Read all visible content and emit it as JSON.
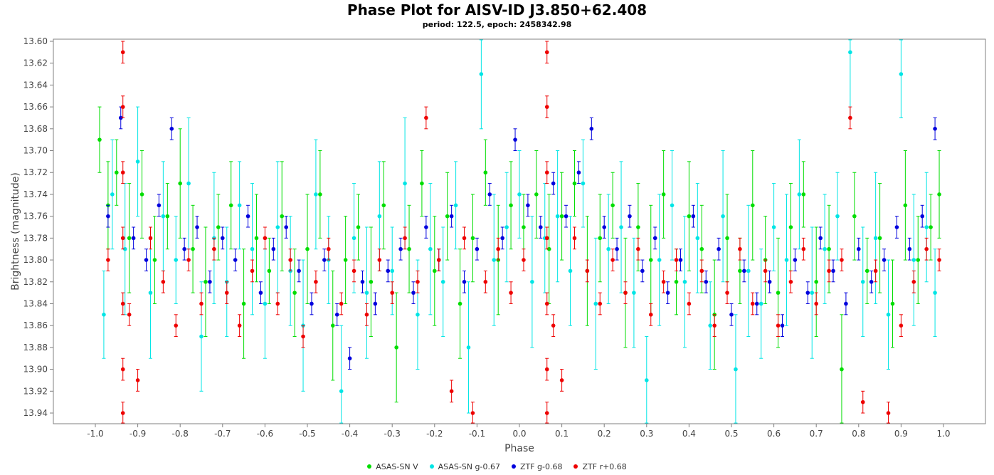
{
  "chart_data": {
    "type": "scatter",
    "title": "Phase Plot for AISV-ID J3.850+62.408",
    "subtitle": "period: 122.5, epoch: 2458342.98",
    "xlabel": "Phase",
    "ylabel": "Brightness (magnitude)",
    "xlim": [
      -1.0,
      1.0
    ],
    "ylim": [
      13.6,
      13.95
    ],
    "y_inverted": false,
    "x_ticks": [
      "-1.0",
      "-0.9",
      "-0.8",
      "-0.7",
      "-0.6",
      "-0.5",
      "-0.4",
      "-0.3",
      "-0.2",
      "-0.1",
      "0.0",
      "0.1",
      "0.2",
      "0.3",
      "0.4",
      "0.5",
      "0.6",
      "0.7",
      "0.8",
      "0.9",
      "1.0"
    ],
    "y_ticks": [
      "13.60",
      "13.62",
      "13.64",
      "13.66",
      "13.68",
      "13.70",
      "13.72",
      "13.74",
      "13.76",
      "13.78",
      "13.80",
      "13.82",
      "13.84",
      "13.86",
      "13.88",
      "13.90",
      "13.92",
      "13.94"
    ],
    "grid": false,
    "legend_position": "bottom",
    "series": [
      {
        "name": "ASAS-SN V",
        "color": "#00dd00",
        "x": [
          -0.99,
          -0.97,
          -0.95,
          -0.92,
          -0.89,
          -0.86,
          -0.83,
          -0.8,
          -0.77,
          -0.74,
          -0.71,
          -0.68,
          -0.65,
          -0.62,
          -0.59,
          -0.56,
          -0.53,
          -0.5,
          -0.47,
          -0.44,
          -0.41,
          -0.38,
          -0.35,
          -0.32,
          -0.29,
          -0.26,
          -0.23,
          -0.2,
          -0.17,
          -0.14,
          -0.11,
          -0.08,
          -0.05,
          -0.02,
          0.01,
          0.04,
          0.07,
          0.1,
          0.13,
          0.16,
          0.19,
          0.22,
          0.25,
          0.28,
          0.31,
          0.34,
          0.37,
          0.4,
          0.43,
          0.46,
          0.49,
          0.52,
          0.55,
          0.58,
          0.61,
          0.64,
          0.67,
          0.7,
          0.73,
          0.76,
          0.79,
          0.82,
          0.85,
          0.88,
          0.91,
          0.94,
          0.97,
          0.99
        ],
        "y": [
          13.69,
          13.75,
          13.72,
          13.78,
          13.74,
          13.8,
          13.76,
          13.73,
          13.79,
          13.82,
          13.77,
          13.75,
          13.84,
          13.78,
          13.81,
          13.76,
          13.83,
          13.79,
          13.74,
          13.86,
          13.8,
          13.77,
          13.82,
          13.75,
          13.88,
          13.79,
          13.73,
          13.81,
          13.76,
          13.84,
          13.78,
          13.72,
          13.8,
          13.75,
          13.77,
          13.74,
          13.79,
          13.76,
          13.73,
          13.81,
          13.78,
          13.75,
          13.83,
          13.77,
          13.8,
          13.74,
          13.82,
          13.76,
          13.79,
          13.85,
          13.78,
          13.81,
          13.75,
          13.8,
          13.83,
          13.77,
          13.74,
          13.82,
          13.79,
          13.9,
          13.76,
          13.81,
          13.78,
          13.84,
          13.75,
          13.8,
          13.77,
          13.74
        ],
        "err": [
          0.03,
          0.04,
          0.03,
          0.05,
          0.04,
          0.04,
          0.03,
          0.05,
          0.04,
          0.05,
          0.03,
          0.04,
          0.05,
          0.04,
          0.03,
          0.05,
          0.04,
          0.05,
          0.04,
          0.05,
          0.04,
          0.03,
          0.05,
          0.04,
          0.05,
          0.04,
          0.03,
          0.05,
          0.04,
          0.05,
          0.04,
          0.03,
          0.05,
          0.04,
          0.03,
          0.04,
          0.05,
          0.04,
          0.03,
          0.05,
          0.04,
          0.03,
          0.05,
          0.04,
          0.05,
          0.04,
          0.03,
          0.05,
          0.04,
          0.05,
          0.04,
          0.03,
          0.05,
          0.04,
          0.05,
          0.04,
          0.03,
          0.05,
          0.04,
          0.05,
          0.04,
          0.03,
          0.05,
          0.04,
          0.05,
          0.04,
          0.03,
          0.04
        ]
      },
      {
        "name": "ASAS-SN g-0.67",
        "color": "#00e5e5",
        "x": [
          -0.98,
          -0.96,
          -0.93,
          -0.9,
          -0.87,
          -0.84,
          -0.81,
          -0.78,
          -0.75,
          -0.72,
          -0.69,
          -0.66,
          -0.63,
          -0.6,
          -0.57,
          -0.54,
          -0.51,
          -0.48,
          -0.45,
          -0.42,
          -0.39,
          -0.36,
          -0.33,
          -0.3,
          -0.27,
          -0.24,
          -0.21,
          -0.18,
          -0.15,
          -0.12,
          -0.09,
          -0.06,
          -0.03,
          0.0,
          0.03,
          0.06,
          0.09,
          0.12,
          0.15,
          0.18,
          0.21,
          0.24,
          0.27,
          0.3,
          0.33,
          0.36,
          0.39,
          0.42,
          0.45,
          0.48,
          0.51,
          0.54,
          0.57,
          0.6,
          0.63,
          0.66,
          0.69,
          0.72,
          0.75,
          0.78,
          0.81,
          0.84,
          0.87,
          0.9,
          0.93,
          0.96,
          0.98
        ],
        "y": [
          13.85,
          13.74,
          13.79,
          13.71,
          13.83,
          13.76,
          13.8,
          13.73,
          13.87,
          13.78,
          13.82,
          13.75,
          13.79,
          13.84,
          13.77,
          13.81,
          13.86,
          13.74,
          13.8,
          13.92,
          13.78,
          13.83,
          13.76,
          13.81,
          13.73,
          13.85,
          13.79,
          13.82,
          13.75,
          13.88,
          13.63,
          13.8,
          13.77,
          13.74,
          13.82,
          13.78,
          13.76,
          13.81,
          13.73,
          13.84,
          13.79,
          13.77,
          13.83,
          13.91,
          13.8,
          13.75,
          13.82,
          13.78,
          13.86,
          13.76,
          13.9,
          13.81,
          13.84,
          13.77,
          13.8,
          13.74,
          13.83,
          13.79,
          13.76,
          13.61,
          13.82,
          13.78,
          13.85,
          13.63,
          13.8,
          13.77,
          13.83
        ],
        "err": [
          0.04,
          0.05,
          0.06,
          0.05,
          0.06,
          0.05,
          0.04,
          0.06,
          0.05,
          0.06,
          0.05,
          0.04,
          0.06,
          0.05,
          0.06,
          0.05,
          0.06,
          0.05,
          0.04,
          0.06,
          0.05,
          0.06,
          0.05,
          0.04,
          0.06,
          0.05,
          0.06,
          0.05,
          0.04,
          0.06,
          0.05,
          0.06,
          0.05,
          0.04,
          0.06,
          0.05,
          0.06,
          0.05,
          0.04,
          0.06,
          0.05,
          0.06,
          0.05,
          0.04,
          0.06,
          0.05,
          0.06,
          0.05,
          0.04,
          0.06,
          0.05,
          0.06,
          0.05,
          0.04,
          0.06,
          0.05,
          0.06,
          0.05,
          0.04,
          0.06,
          0.05,
          0.06,
          0.05,
          0.04,
          0.06,
          0.05,
          0.04
        ]
      },
      {
        "name": "ZTF g-0.68",
        "color": "#0000dd",
        "x": [
          -0.97,
          -0.94,
          -0.91,
          -0.88,
          -0.85,
          -0.82,
          -0.79,
          -0.76,
          -0.73,
          -0.7,
          -0.67,
          -0.64,
          -0.61,
          -0.58,
          -0.55,
          -0.52,
          -0.49,
          -0.46,
          -0.43,
          -0.4,
          -0.37,
          -0.34,
          -0.31,
          -0.28,
          -0.25,
          -0.22,
          -0.19,
          -0.16,
          -0.13,
          -0.1,
          -0.07,
          -0.04,
          -0.01,
          0.02,
          0.05,
          0.08,
          0.11,
          0.14,
          0.17,
          0.2,
          0.23,
          0.26,
          0.29,
          0.32,
          0.35,
          0.38,
          0.41,
          0.44,
          0.47,
          0.5,
          0.53,
          0.56,
          0.59,
          0.62,
          0.65,
          0.68,
          0.71,
          0.74,
          0.77,
          0.8,
          0.83,
          0.86,
          0.89,
          0.92,
          0.95,
          0.98
        ],
        "y": [
          13.76,
          13.67,
          13.78,
          13.8,
          13.75,
          13.68,
          13.79,
          13.77,
          13.82,
          13.78,
          13.8,
          13.76,
          13.83,
          13.79,
          13.77,
          13.81,
          13.84,
          13.8,
          13.85,
          13.89,
          13.82,
          13.84,
          13.81,
          13.79,
          13.83,
          13.77,
          13.8,
          13.76,
          13.82,
          13.79,
          13.74,
          13.78,
          13.69,
          13.75,
          13.77,
          13.73,
          13.76,
          13.72,
          13.68,
          13.77,
          13.79,
          13.76,
          13.81,
          13.78,
          13.83,
          13.8,
          13.76,
          13.82,
          13.79,
          13.85,
          13.81,
          13.84,
          13.82,
          13.86,
          13.8,
          13.83,
          13.78,
          13.81,
          13.84,
          13.79,
          13.82,
          13.8,
          13.77,
          13.79,
          13.76,
          13.68
        ],
        "err": [
          0.01,
          0.01,
          0.01,
          0.01,
          0.01,
          0.01,
          0.01,
          0.01,
          0.01,
          0.01,
          0.01,
          0.01,
          0.01,
          0.01,
          0.01,
          0.01,
          0.01,
          0.01,
          0.01,
          0.01,
          0.01,
          0.01,
          0.01,
          0.01,
          0.01,
          0.01,
          0.01,
          0.01,
          0.01,
          0.01,
          0.01,
          0.01,
          0.01,
          0.01,
          0.01,
          0.01,
          0.01,
          0.01,
          0.01,
          0.01,
          0.01,
          0.01,
          0.01,
          0.01,
          0.01,
          0.01,
          0.01,
          0.01,
          0.01,
          0.01,
          0.01,
          0.01,
          0.01,
          0.01,
          0.01,
          0.01,
          0.01,
          0.01,
          0.01,
          0.01,
          0.01,
          0.01,
          0.01,
          0.01,
          0.01,
          0.01
        ]
      },
      {
        "name": "ZTF r+0.68",
        "color": "#ee0000",
        "x": [
          -0.97,
          -0.935,
          -0.935,
          -0.935,
          -0.935,
          -0.935,
          -0.935,
          -0.935,
          -0.92,
          -0.9,
          -0.87,
          -0.84,
          -0.81,
          -0.78,
          -0.75,
          -0.72,
          -0.69,
          -0.66,
          -0.63,
          -0.6,
          -0.57,
          -0.54,
          -0.51,
          -0.48,
          -0.45,
          -0.42,
          -0.39,
          -0.36,
          -0.33,
          -0.3,
          -0.27,
          -0.24,
          -0.22,
          -0.19,
          -0.16,
          -0.13,
          -0.11,
          -0.08,
          -0.05,
          -0.02,
          0.01,
          0.065,
          0.065,
          0.065,
          0.065,
          0.065,
          0.065,
          0.065,
          0.08,
          0.1,
          0.13,
          0.16,
          0.19,
          0.22,
          0.25,
          0.28,
          0.31,
          0.34,
          0.37,
          0.4,
          0.43,
          0.46,
          0.49,
          0.52,
          0.55,
          0.58,
          0.61,
          0.64,
          0.67,
          0.7,
          0.73,
          0.76,
          0.78,
          0.81,
          0.84,
          0.87,
          0.9,
          0.93,
          0.96,
          0.99
        ],
        "y": [
          13.8,
          13.61,
          13.66,
          13.72,
          13.78,
          13.84,
          13.9,
          13.94,
          13.85,
          13.91,
          13.78,
          13.82,
          13.86,
          13.8,
          13.84,
          13.79,
          13.83,
          13.86,
          13.81,
          13.78,
          13.84,
          13.8,
          13.87,
          13.82,
          13.79,
          13.84,
          13.81,
          13.85,
          13.8,
          13.83,
          13.78,
          13.82,
          13.67,
          13.8,
          13.92,
          13.78,
          13.94,
          13.82,
          13.79,
          13.83,
          13.8,
          13.61,
          13.66,
          13.72,
          13.78,
          13.84,
          13.9,
          13.94,
          13.86,
          13.91,
          13.78,
          13.81,
          13.84,
          13.8,
          13.83,
          13.79,
          13.85,
          13.82,
          13.8,
          13.84,
          13.81,
          13.86,
          13.83,
          13.79,
          13.84,
          13.81,
          13.86,
          13.82,
          13.79,
          13.84,
          13.81,
          13.8,
          13.67,
          13.93,
          13.81,
          13.94,
          13.86,
          13.82,
          13.79,
          13.8
        ],
        "err": [
          0.01,
          0.01,
          0.01,
          0.01,
          0.01,
          0.01,
          0.01,
          0.01,
          0.01,
          0.01,
          0.01,
          0.01,
          0.01,
          0.01,
          0.01,
          0.01,
          0.01,
          0.01,
          0.01,
          0.01,
          0.01,
          0.01,
          0.01,
          0.01,
          0.01,
          0.01,
          0.01,
          0.01,
          0.01,
          0.01,
          0.01,
          0.01,
          0.01,
          0.01,
          0.01,
          0.01,
          0.01,
          0.01,
          0.01,
          0.01,
          0.01,
          0.01,
          0.01,
          0.01,
          0.01,
          0.01,
          0.01,
          0.01,
          0.01,
          0.01,
          0.01,
          0.01,
          0.01,
          0.01,
          0.01,
          0.01,
          0.01,
          0.01,
          0.01,
          0.01,
          0.01,
          0.01,
          0.01,
          0.01,
          0.01,
          0.01,
          0.01,
          0.01,
          0.01,
          0.01,
          0.01,
          0.01,
          0.01,
          0.01,
          0.01,
          0.01,
          0.01,
          0.01,
          0.01,
          0.01
        ]
      }
    ]
  }
}
